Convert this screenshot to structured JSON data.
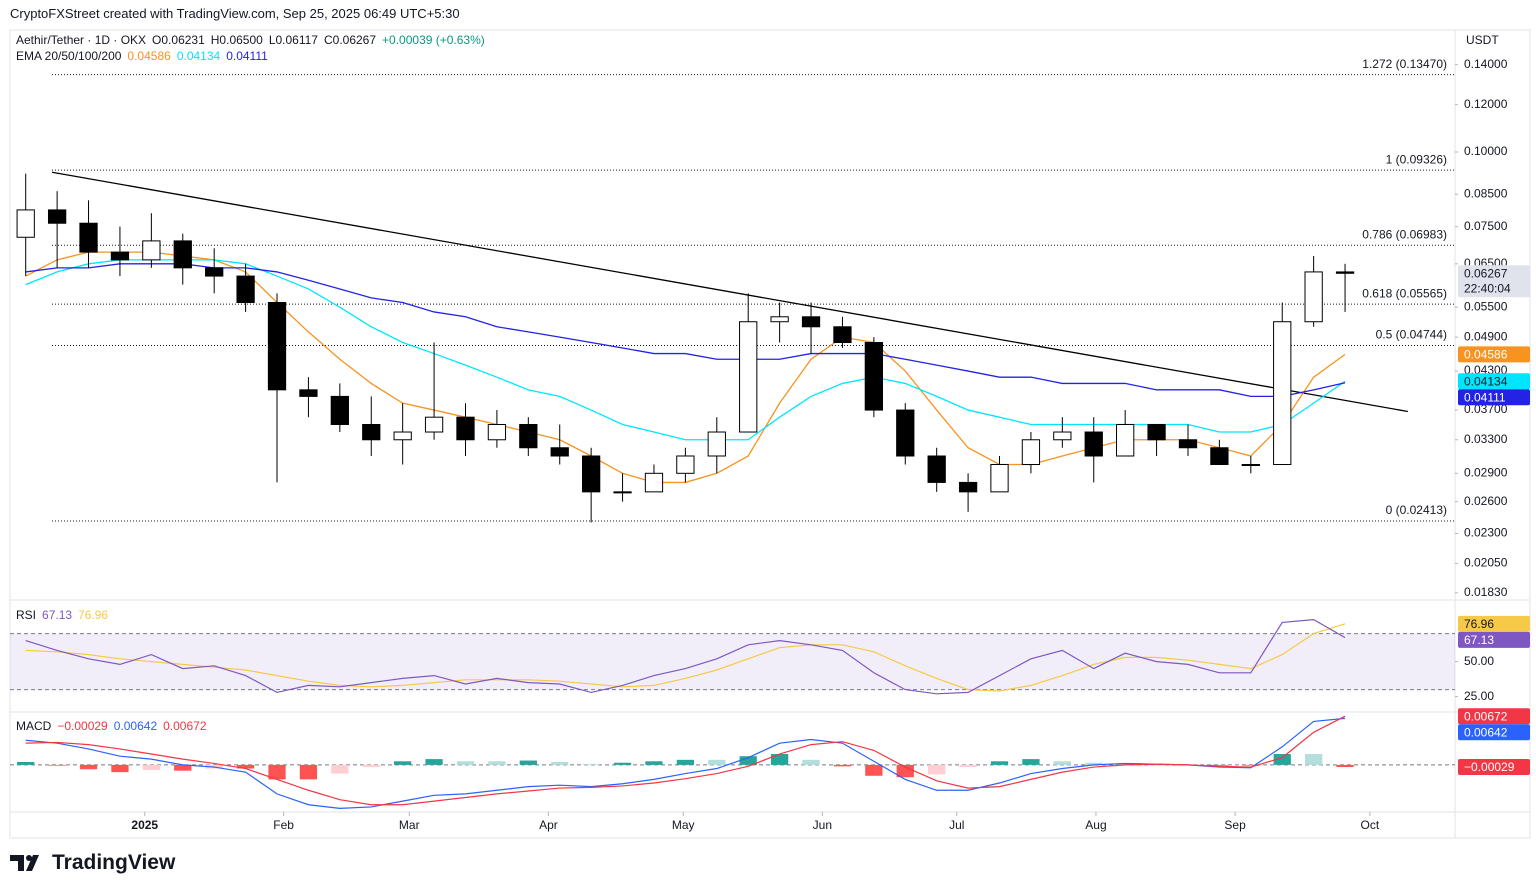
{
  "header": {
    "credit": "CryptoFXStreet created with TradingView.com, Sep 25, 2025 06:49 UTC+5:30"
  },
  "footer": {
    "logo": "TradingView"
  },
  "chart_data": [
    {
      "type": "candlestick",
      "title": "Aethir/Tether · 1D · OKX",
      "ohlc_labels": [
        "O0.06231",
        "H0.06500",
        "L0.06117",
        "C0.06267",
        "+0.00039 (+0.63%)"
      ],
      "unit": "USDT",
      "countdown": "22:40:04",
      "log": true,
      "xlim": [
        0,
        46
      ],
      "ylim": [
        0.0178,
        0.16
      ],
      "yticks": [
        {
          "value": 0.14,
          "label": "0.14000"
        },
        {
          "value": 0.12,
          "label": "0.12000"
        },
        {
          "value": 0.1,
          "label": "0.10000"
        },
        {
          "value": 0.085,
          "label": "0.08500"
        },
        {
          "value": 0.075,
          "label": "0.07500"
        },
        {
          "value": 0.065,
          "label": "0.06500"
        },
        {
          "value": 0.055,
          "label": "0.05500"
        },
        {
          "value": 0.049,
          "label": "0.04900"
        },
        {
          "value": 0.043,
          "label": "0.04300"
        },
        {
          "value": 0.037,
          "label": "0.03700"
        },
        {
          "value": 0.033,
          "label": "0.03300"
        },
        {
          "value": 0.029,
          "label": "0.02900"
        },
        {
          "value": 0.026,
          "label": "0.02600"
        },
        {
          "value": 0.023,
          "label": "0.02300"
        },
        {
          "value": 0.0205,
          "label": "0.02050"
        },
        {
          "value": 0.0183,
          "label": "0.01830"
        }
      ],
      "up_color": "#ffffff",
      "down_color": "#000000",
      "open": [
        0.072,
        0.08,
        0.076,
        0.068,
        0.066,
        0.071,
        0.064,
        0.062,
        0.056,
        0.04,
        0.039,
        0.035,
        0.033,
        0.034,
        0.036,
        0.033,
        0.035,
        0.032,
        0.031,
        0.027,
        0.027,
        0.029,
        0.031,
        0.034,
        0.052,
        0.053,
        0.051,
        0.048,
        0.037,
        0.031,
        0.028,
        0.027,
        0.03,
        0.033,
        0.034,
        0.031,
        0.035,
        0.033,
        0.032,
        0.03,
        0.03,
        0.052,
        0.063
      ],
      "high": [
        0.092,
        0.086,
        0.083,
        0.075,
        0.079,
        0.073,
        0.069,
        0.065,
        0.058,
        0.042,
        0.041,
        0.039,
        0.038,
        0.048,
        0.038,
        0.037,
        0.036,
        0.035,
        0.032,
        0.029,
        0.03,
        0.032,
        0.036,
        0.058,
        0.056,
        0.056,
        0.053,
        0.049,
        0.038,
        0.032,
        0.029,
        0.031,
        0.034,
        0.036,
        0.036,
        0.037,
        0.035,
        0.035,
        0.033,
        0.031,
        0.056,
        0.067,
        0.065
      ],
      "low": [
        0.062,
        0.064,
        0.064,
        0.062,
        0.064,
        0.06,
        0.058,
        0.054,
        0.028,
        0.036,
        0.034,
        0.031,
        0.03,
        0.033,
        0.031,
        0.032,
        0.031,
        0.03,
        0.024,
        0.026,
        0.027,
        0.028,
        0.029,
        0.034,
        0.048,
        0.046,
        0.047,
        0.036,
        0.03,
        0.027,
        0.025,
        0.027,
        0.029,
        0.032,
        0.028,
        0.031,
        0.031,
        0.031,
        0.03,
        0.029,
        0.03,
        0.051,
        0.054
      ],
      "close": [
        0.08,
        0.076,
        0.068,
        0.066,
        0.071,
        0.064,
        0.062,
        0.056,
        0.04,
        0.039,
        0.035,
        0.033,
        0.034,
        0.036,
        0.033,
        0.035,
        0.032,
        0.031,
        0.027,
        0.027,
        0.029,
        0.031,
        0.034,
        0.052,
        0.053,
        0.051,
        0.048,
        0.037,
        0.031,
        0.028,
        0.027,
        0.03,
        0.033,
        0.034,
        0.031,
        0.035,
        0.033,
        0.032,
        0.03,
        0.03,
        0.052,
        0.063,
        0.06267
      ],
      "ema_label": "EMA 20/50/100/200",
      "series": [
        {
          "color": "#f7931e",
          "values": [
            0.062,
            0.066,
            0.068,
            0.068,
            0.068,
            0.067,
            0.066,
            0.063,
            0.056,
            0.05,
            0.045,
            0.041,
            0.038,
            0.037,
            0.036,
            0.035,
            0.034,
            0.033,
            0.031,
            0.029,
            0.028,
            0.028,
            0.029,
            0.031,
            0.038,
            0.045,
            0.049,
            0.048,
            0.043,
            0.037,
            0.032,
            0.03,
            0.03,
            0.031,
            0.032,
            0.033,
            0.033,
            0.033,
            0.032,
            0.031,
            0.035,
            0.042,
            0.04586
          ]
        },
        {
          "color": "#00e5ff",
          "values": [
            0.06,
            0.063,
            0.065,
            0.066,
            0.066,
            0.066,
            0.066,
            0.065,
            0.062,
            0.059,
            0.055,
            0.051,
            0.048,
            0.046,
            0.044,
            0.042,
            0.04,
            0.039,
            0.037,
            0.035,
            0.034,
            0.033,
            0.033,
            0.033,
            0.036,
            0.039,
            0.041,
            0.042,
            0.041,
            0.039,
            0.037,
            0.036,
            0.035,
            0.035,
            0.035,
            0.035,
            0.035,
            0.035,
            0.034,
            0.034,
            0.035,
            0.038,
            0.04134
          ]
        },
        {
          "color": "#2323e6",
          "values": [
            0.063,
            0.064,
            0.064,
            0.065,
            0.065,
            0.065,
            0.064,
            0.064,
            0.063,
            0.061,
            0.059,
            0.057,
            0.056,
            0.054,
            0.053,
            0.051,
            0.05,
            0.049,
            0.048,
            0.047,
            0.046,
            0.046,
            0.045,
            0.045,
            0.045,
            0.046,
            0.046,
            0.046,
            0.045,
            0.044,
            0.043,
            0.042,
            0.042,
            0.041,
            0.041,
            0.041,
            0.04,
            0.04,
            0.04,
            0.039,
            0.039,
            0.04,
            0.04111
          ]
        }
      ],
      "levels": [
        {
          "value": 0.1347,
          "label": "1.272 (0.13470)"
        },
        {
          "value": 0.09326,
          "label": "1 (0.09326)"
        },
        {
          "value": 0.06983,
          "label": "0.786 (0.06983)"
        },
        {
          "value": 0.05565,
          "label": "0.618 (0.05565)"
        },
        {
          "value": 0.04744,
          "label": "0.5 (0.04744)"
        },
        {
          "value": 0.02413,
          "label": "0 (0.02413)"
        }
      ],
      "trendline": {
        "x": [
          1.34,
          44.5
        ],
        "y": [
          0.0925,
          0.0368
        ],
        "color": "#000000"
      }
    },
    {
      "type": "line",
      "title": "RSI",
      "xlim": [
        0,
        46
      ],
      "ylim": [
        14,
        94
      ],
      "yticks": [
        {
          "value": 50,
          "label": "50.00"
        },
        {
          "value": 25,
          "label": "25.00"
        }
      ],
      "band": [
        30,
        70
      ],
      "band_color": "#7e57c2",
      "series": [
        {
          "color": "#7e57c2",
          "values": [
            65,
            58,
            52,
            48,
            55,
            45,
            47,
            40,
            28,
            33,
            32,
            35,
            38,
            40,
            34,
            38,
            35,
            34,
            28,
            33,
            40,
            45,
            52,
            62,
            65,
            62,
            58,
            42,
            30,
            27,
            28,
            40,
            52,
            58,
            45,
            56,
            50,
            48,
            42,
            42,
            78,
            80,
            67.13
          ]
        },
        {
          "color": "#f7c948",
          "values": [
            58,
            57,
            55,
            52,
            50,
            48,
            46,
            44,
            40,
            36,
            33,
            32,
            33,
            35,
            37,
            37,
            37,
            36,
            34,
            32,
            33,
            38,
            44,
            52,
            60,
            62,
            62,
            57,
            47,
            38,
            30,
            29,
            33,
            40,
            48,
            53,
            53,
            51,
            48,
            45,
            55,
            70,
            76.96
          ]
        }
      ]
    },
    {
      "type": "macd",
      "title": "MACD",
      "xlim": [
        0,
        46
      ],
      "ylim": [
        -0.0065,
        0.0073
      ],
      "xticks": [
        {
          "value": 4.29,
          "label": "2025"
        },
        {
          "value": 8.71,
          "label": "Feb"
        },
        {
          "value": 12.71,
          "label": "Mar"
        },
        {
          "value": 17.14,
          "label": "Apr"
        },
        {
          "value": 21.43,
          "label": "May"
        },
        {
          "value": 25.86,
          "label": "Jun"
        },
        {
          "value": 30.14,
          "label": "Jul"
        },
        {
          "value": 34.57,
          "label": "Aug"
        },
        {
          "value": 39,
          "label": "Sep"
        },
        {
          "value": 43.29,
          "label": "Oct"
        }
      ],
      "histogram": {
        "color": "#f23645",
        "values": [
          0.0004,
          -0.0001,
          -0.0006,
          -0.001,
          -0.0007,
          -0.0008,
          -0.0005,
          -0.0005,
          -0.002,
          -0.002,
          -0.0012,
          -0.0003,
          0.0005,
          0.0008,
          0.0005,
          0.0005,
          0.0006,
          0.0004,
          0.0001,
          0.0003,
          0.0005,
          0.0007,
          0.0007,
          0.0012,
          0.0015,
          0.0007,
          -0.0002,
          -0.0015,
          -0.0017,
          -0.0013,
          -0.0003,
          0.0005,
          0.0008,
          0.0005,
          0.0003,
          0.0002,
          0,
          0,
          -0.0001,
          -0.0001,
          0.0015,
          0.0015,
          -0.00029
        ],
        "value_labels": [
          null,
          null,
          null,
          null,
          null,
          null,
          null,
          null,
          null,
          null,
          null,
          null,
          null,
          null,
          null,
          null,
          null,
          null,
          null,
          null,
          null,
          null,
          null,
          null,
          null,
          null,
          null,
          null,
          null,
          null,
          null,
          null,
          null,
          null,
          null,
          null,
          null,
          null,
          null,
          null,
          null,
          null,
          "−0.00029"
        ]
      },
      "series": [
        {
          "color": "#2962ff",
          "values": [
            0.0034,
            0.003,
            0.0022,
            0.0012,
            0.0008,
            0,
            -0.0003,
            -0.001,
            -0.004,
            -0.0055,
            -0.006,
            -0.0058,
            -0.005,
            -0.0042,
            -0.004,
            -0.0035,
            -0.003,
            -0.0028,
            -0.003,
            -0.0026,
            -0.002,
            -0.0012,
            -0.0005,
            0.001,
            0.003,
            0.0035,
            0.003,
            0.0005,
            -0.002,
            -0.0035,
            -0.0035,
            -0.0025,
            -0.0012,
            -0.0005,
            0,
            0.0002,
            0.0001,
            0,
            -0.0003,
            -0.0004,
            0.0025,
            0.006,
            0.00642
          ]
        },
        {
          "color": "#f23645",
          "values": [
            0.003,
            0.0031,
            0.0028,
            0.0022,
            0.0015,
            0.0008,
            0.0002,
            -0.0005,
            -0.002,
            -0.0035,
            -0.0048,
            -0.0055,
            -0.0055,
            -0.005,
            -0.0045,
            -0.004,
            -0.0036,
            -0.0032,
            -0.0031,
            -0.0029,
            -0.0025,
            -0.0019,
            -0.0012,
            -0.0002,
            0.0015,
            0.0028,
            0.0032,
            0.002,
            -0.0003,
            -0.0022,
            -0.0032,
            -0.003,
            -0.002,
            -0.001,
            -0.0003,
            0,
            0.0001,
            0,
            -0.0002,
            -0.0003,
            0.001,
            0.0045,
            0.00672
          ]
        }
      ]
    }
  ]
}
